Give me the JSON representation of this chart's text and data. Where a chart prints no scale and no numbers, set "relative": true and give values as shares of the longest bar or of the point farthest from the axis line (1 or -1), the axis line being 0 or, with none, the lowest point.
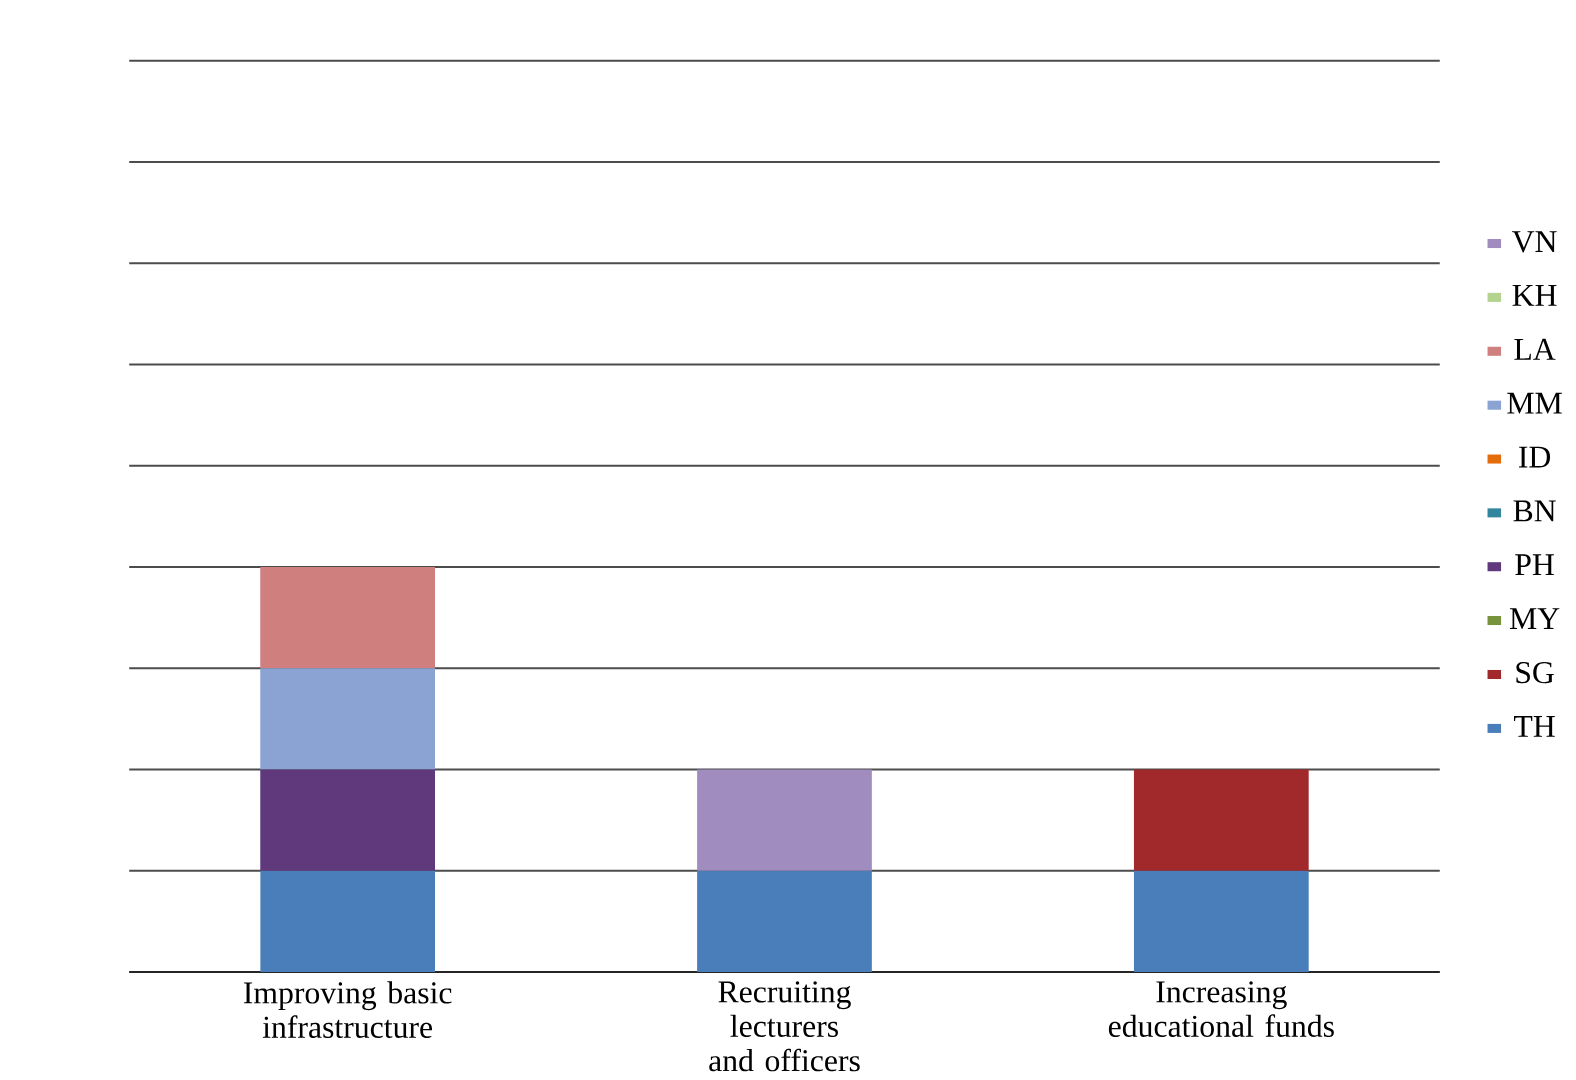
{
  "chart_data": {
    "type": "bar",
    "stacked": true,
    "relative": true,
    "grid": "y",
    "legend": "right",
    "categories": [
      "Improving basic infrastructure",
      "Recruiting lecturers and officers",
      "Increasing educational funds"
    ],
    "series": [
      {
        "name": "TH",
        "color": "#4a7ebb",
        "values": [
          0.25,
          0.25,
          0.25
        ]
      },
      {
        "name": "SG",
        "color": "#a2292b",
        "values": [
          0,
          0,
          0.25
        ]
      },
      {
        "name": "MY",
        "color": "#77933c",
        "values": [
          0,
          0,
          0
        ]
      },
      {
        "name": "PH",
        "color": "#60397d",
        "values": [
          0.25,
          0,
          0
        ]
      },
      {
        "name": "BN",
        "color": "#31859c",
        "values": [
          0,
          0,
          0
        ]
      },
      {
        "name": "ID",
        "color": "#e46c0a",
        "values": [
          0,
          0,
          0
        ]
      },
      {
        "name": "MM",
        "color": "#8aa3d2",
        "values": [
          0.25,
          0,
          0
        ]
      },
      {
        "name": "LA",
        "color": "#d07f7f",
        "values": [
          0.25,
          0,
          0
        ]
      },
      {
        "name": "KH",
        "color": "#b3d38f",
        "values": [
          0,
          0,
          0
        ]
      },
      {
        "name": "VN",
        "color": "#a08cbf",
        "values": [
          0,
          0.25,
          0
        ]
      }
    ]
  }
}
